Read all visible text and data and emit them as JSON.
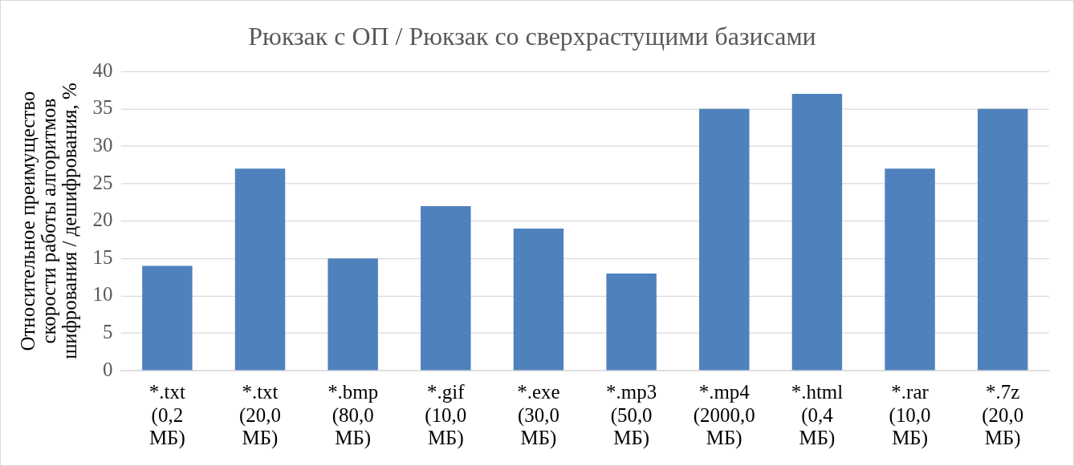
{
  "chart_data": {
    "type": "bar",
    "title": "Рюкзак с ОП / Рюкзак со сверхрастущими базисами",
    "ylabel": "Относительное преимущество скорости работы алгоритмов шифрования / дешифрования, %",
    "categories": [
      "*.txt (0,2 МБ)",
      "*.txt (20,0 МБ)",
      "*.bmp (80,0 МБ)",
      "*.gif (10,0 МБ)",
      "*.exe (30,0 МБ)",
      "*.mp3 (50,0 МБ)",
      "*.mp4 (2000,0 МБ)",
      "*.html (0,4 МБ)",
      "*.rar (10,0 МБ)",
      "*.7z (20,0 МБ)"
    ],
    "values": [
      14,
      27,
      15,
      22,
      19,
      13,
      35,
      37,
      27,
      35
    ],
    "color": "#4f81bd",
    "ylim": [
      0,
      40
    ],
    "yticks": [
      0,
      5,
      10,
      15,
      20,
      25,
      30,
      35,
      40
    ],
    "grid": "y",
    "legend": false
  }
}
